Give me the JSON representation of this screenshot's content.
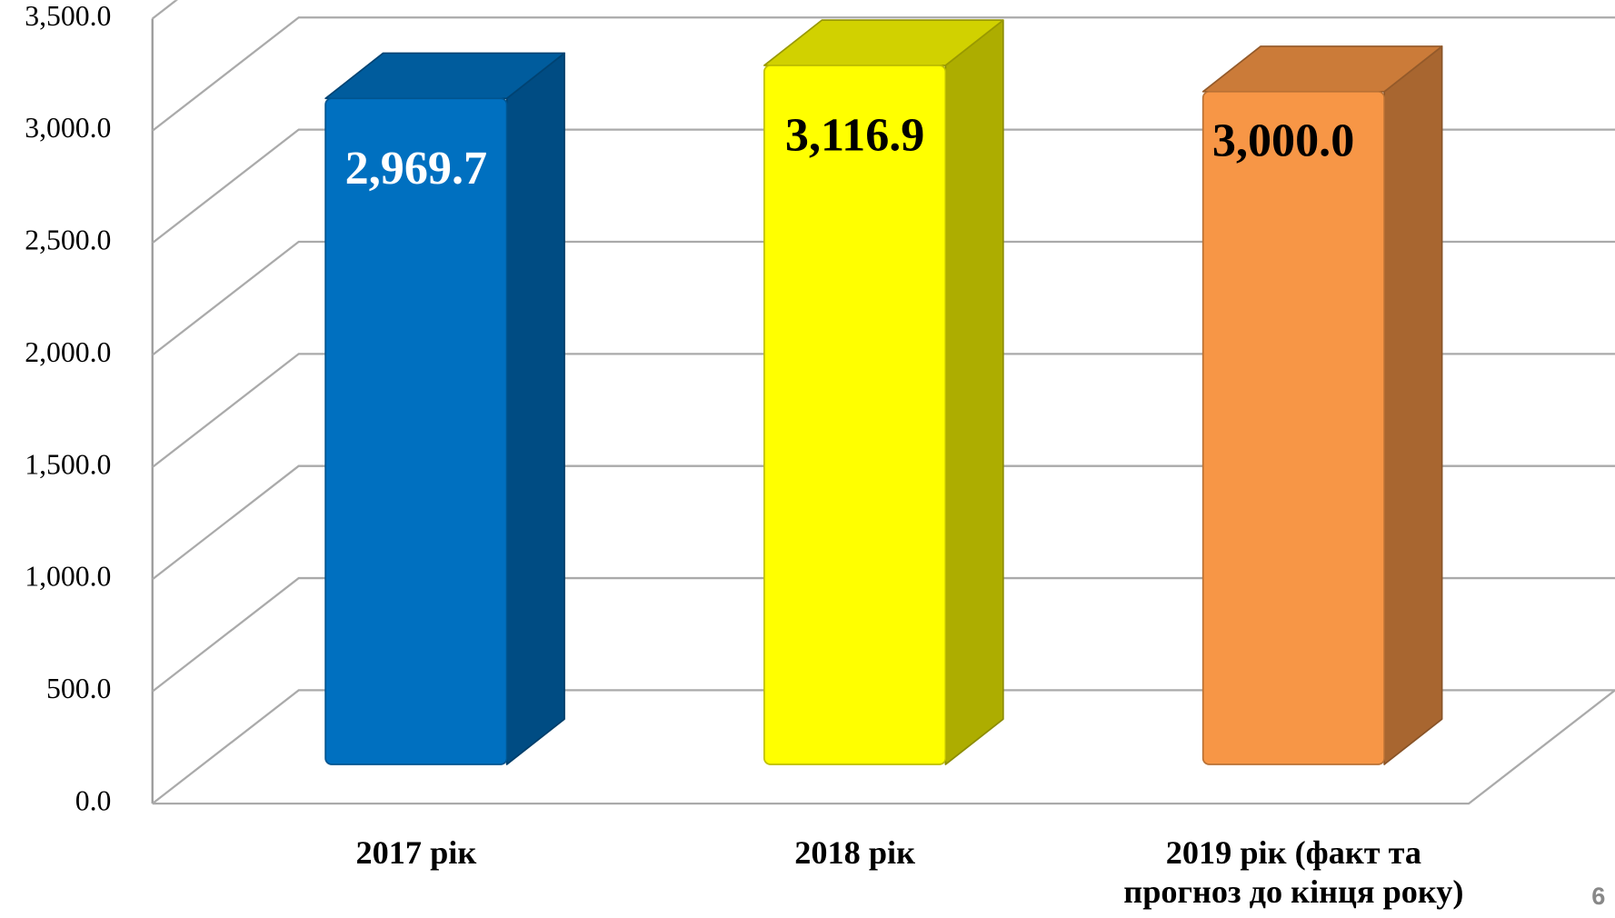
{
  "chart_data": {
    "type": "bar3d",
    "categories": [
      "2017 рік",
      "2018 рік",
      "2019 рік (факт та прогноз до кінця року)"
    ],
    "values": [
      2969.7,
      3116.9,
      3000.0
    ],
    "value_labels": [
      "2,969.7",
      "3,116.9",
      "3,000.0"
    ],
    "colors": [
      "#0070c0",
      "#ffff00",
      "#f79646"
    ],
    "value_label_colors": [
      "#ffffff",
      "#000000",
      "#000000"
    ],
    "ylim": [
      0,
      3500
    ],
    "yticks": [
      {
        "value": 0,
        "label": "0.0"
      },
      {
        "value": 500,
        "label": "500.0"
      },
      {
        "value": 1000,
        "label": "1,000.0"
      },
      {
        "value": 1500,
        "label": "1,500.0"
      },
      {
        "value": 2000,
        "label": "2,000.0"
      },
      {
        "value": 2500,
        "label": "2,500.0"
      },
      {
        "value": 3000,
        "label": "3,000.0"
      },
      {
        "value": 3500,
        "label": "3,500.0"
      }
    ],
    "grid": true
  },
  "slide_number": "6"
}
